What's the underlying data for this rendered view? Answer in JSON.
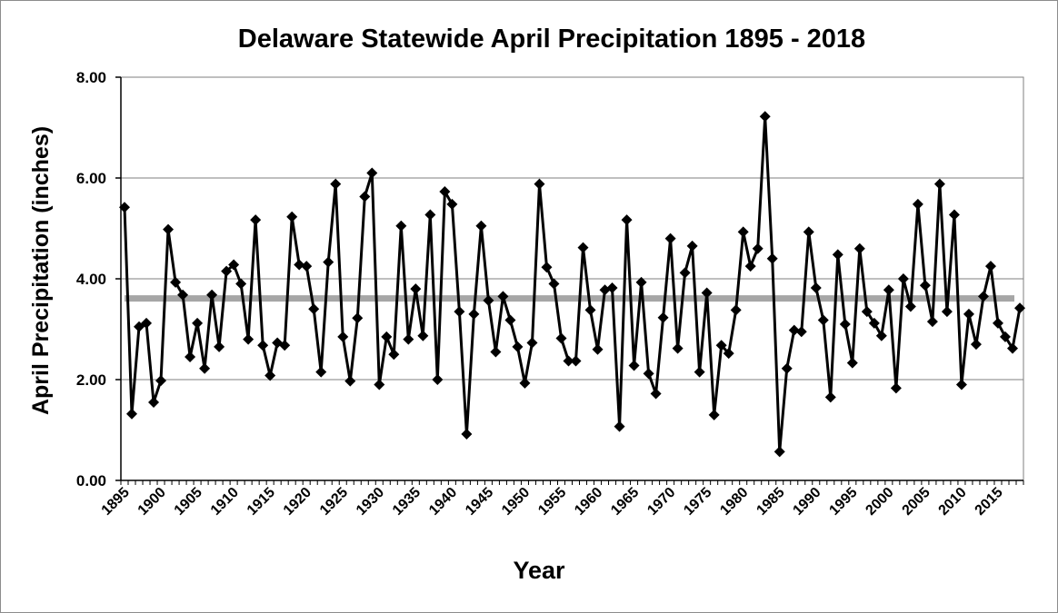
{
  "chart_data": {
    "type": "line",
    "title": "Delaware Statewide April Precipitation 1895 - 2018",
    "xlabel": "Year",
    "ylabel": "April Precipitation (inches)",
    "ylim": [
      0,
      8
    ],
    "yticks": [
      "0.00",
      "2.00",
      "4.00",
      "6.00",
      "8.00"
    ],
    "xlim": [
      1895,
      2018
    ],
    "xticks": [
      "1895",
      "1900",
      "1905",
      "1910",
      "1915",
      "1920",
      "1925",
      "1930",
      "1935",
      "1940",
      "1945",
      "1950",
      "1955",
      "1960",
      "1965",
      "1970",
      "1975",
      "1980",
      "1985",
      "1990",
      "1995",
      "2000",
      "2005",
      "2010",
      "2015"
    ],
    "grid": "horizontal",
    "legend": "none",
    "x_start": 1895,
    "series": [
      {
        "marker": "diamond",
        "color": "#000000",
        "values": [
          5.42,
          1.32,
          3.05,
          3.12,
          1.55,
          1.98,
          4.98,
          3.93,
          3.68,
          2.45,
          3.12,
          2.22,
          3.68,
          2.65,
          4.15,
          4.28,
          3.9,
          2.8,
          5.17,
          2.68,
          2.08,
          2.73,
          2.68,
          5.23,
          4.28,
          4.25,
          3.4,
          2.15,
          4.33,
          5.88,
          2.85,
          1.97,
          3.22,
          5.63,
          6.1,
          1.9,
          2.85,
          2.5,
          5.05,
          2.8,
          3.8,
          2.87,
          5.27,
          2.0,
          5.73,
          5.48,
          3.35,
          0.92,
          3.3,
          5.05,
          3.57,
          2.55,
          3.65,
          3.18,
          2.65,
          1.93,
          2.73,
          5.88,
          4.23,
          3.9,
          2.82,
          2.37,
          2.37,
          4.62,
          3.38,
          2.6,
          3.78,
          3.82,
          1.07,
          5.17,
          2.28,
          3.93,
          2.12,
          1.72,
          3.23,
          4.8,
          2.62,
          4.12,
          4.65,
          2.15,
          3.72,
          1.3,
          2.68,
          2.52,
          3.38,
          4.93,
          4.25,
          4.6,
          7.22,
          4.4,
          0.57,
          2.22,
          2.98,
          2.95,
          4.93,
          3.82,
          3.18,
          1.65,
          4.48,
          3.1,
          2.33,
          4.6,
          3.35,
          3.12,
          2.87,
          3.78,
          1.83,
          4.0,
          3.45,
          5.48,
          3.87,
          3.15,
          5.88,
          3.35,
          5.27,
          1.9,
          3.3,
          2.7,
          3.65,
          4.25,
          3.12,
          2.85,
          2.62,
          3.42
        ]
      },
      {
        "kind": "mean-line",
        "color": "#a6a6a6",
        "values": [
          3.61,
          3.61
        ]
      }
    ]
  }
}
